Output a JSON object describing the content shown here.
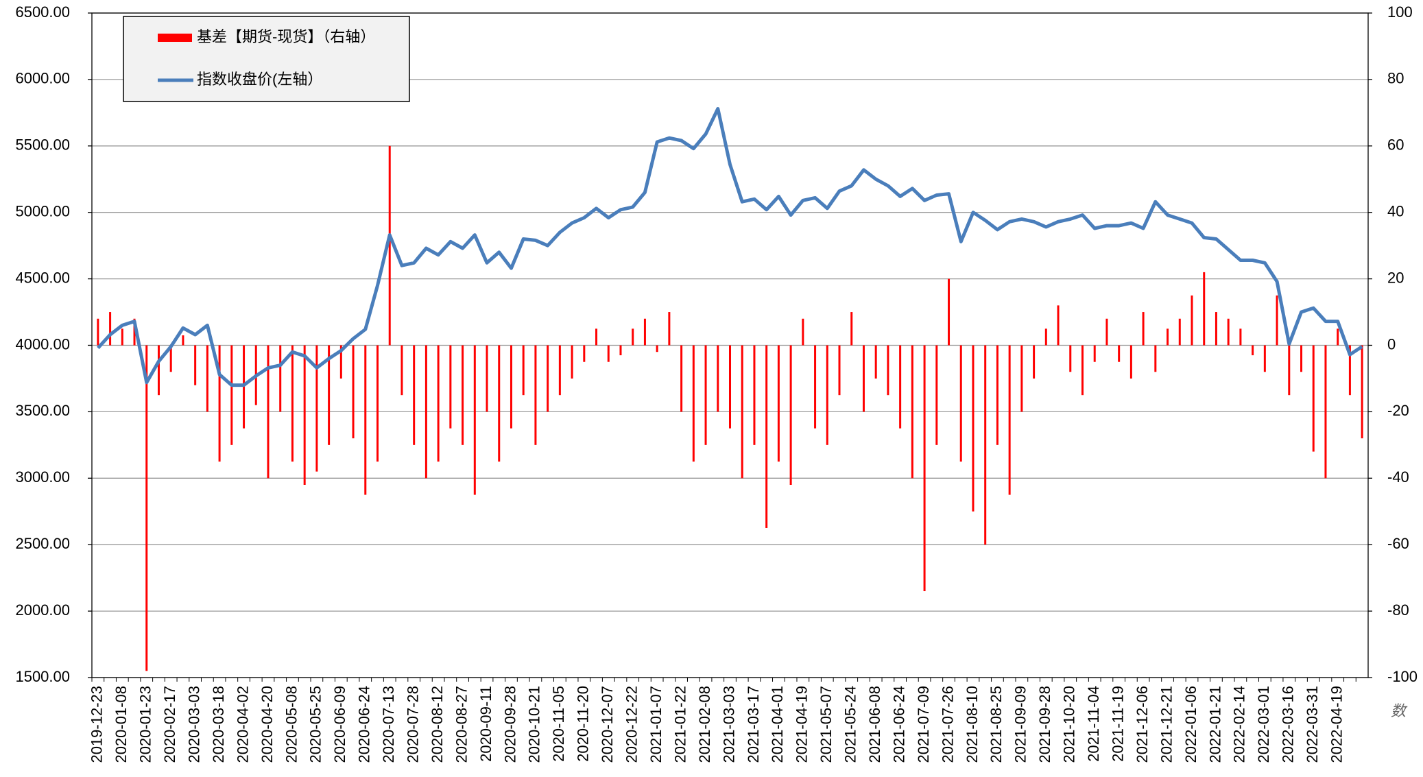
{
  "chart_data": {
    "type": "bar-line",
    "categories": [
      "2019-12-23",
      null,
      "2020-01-08",
      null,
      "2020-01-23",
      null,
      "2020-02-17",
      null,
      "2020-03-03",
      null,
      "2020-03-18",
      null,
      "2020-04-02",
      null,
      "2020-04-20",
      null,
      "2020-05-08",
      null,
      "2020-05-25",
      null,
      "2020-06-09",
      null,
      "2020-06-24",
      null,
      "2020-07-13",
      null,
      "2020-07-28",
      null,
      "2020-08-12",
      null,
      "2020-08-27",
      null,
      "2020-09-11",
      null,
      "2020-09-28",
      null,
      "2020-10-21",
      null,
      "2020-11-05",
      null,
      "2020-11-20",
      null,
      "2020-12-07",
      null,
      "2020-12-22",
      null,
      "2021-01-07",
      null,
      "2021-01-22",
      null,
      "2021-02-08",
      null,
      "2021-03-03",
      null,
      "2021-03-17",
      null,
      "2021-04-01",
      null,
      "2021-04-19",
      null,
      "2021-05-07",
      null,
      "2021-05-24",
      null,
      "2021-06-08",
      null,
      "2021-06-24",
      null,
      "2021-07-09",
      null,
      "2021-07-26",
      null,
      "2021-08-10",
      null,
      "2021-08-25",
      null,
      "2021-09-09",
      null,
      "2021-09-28",
      null,
      "2021-10-20",
      null,
      "2021-11-04",
      null,
      "2021-11-19",
      null,
      "2021-12-06",
      null,
      "2021-12-21",
      null,
      "2022-01-06",
      null,
      "2022-01-21",
      null,
      "2022-02-14",
      null,
      "2022-03-01",
      null,
      "2022-03-16",
      null,
      "2022-03-31",
      null,
      "2022-04-19",
      null,
      null
    ],
    "series": [
      {
        "name": "基差【期货-现货】（右轴）",
        "type": "bar",
        "axis": "y2",
        "color": "#ff0000",
        "values": [
          8,
          10,
          5,
          8,
          -98,
          -15,
          -8,
          3,
          -12,
          -20,
          -35,
          -30,
          -25,
          -18,
          -40,
          -20,
          -35,
          -42,
          -38,
          -30,
          -10,
          -28,
          -45,
          -35,
          60,
          -15,
          -30,
          -40,
          -35,
          -25,
          -30,
          -45,
          -20,
          -35,
          -25,
          -15,
          -30,
          -20,
          -15,
          -10,
          -5,
          5,
          -5,
          -3,
          5,
          8,
          -2,
          10,
          -20,
          -35,
          -30,
          -20,
          -25,
          -40,
          -30,
          -55,
          -35,
          -42,
          8,
          -25,
          -30,
          -15,
          10,
          -20,
          -10,
          -15,
          -25,
          -40,
          -74,
          -30,
          20,
          -35,
          -50,
          -60,
          -30,
          -45,
          -20,
          -10,
          5,
          12,
          -8,
          -15,
          -5,
          8,
          -5,
          -10,
          10,
          -8,
          5,
          8,
          15,
          22,
          10,
          8,
          5,
          -3,
          -8,
          15,
          -15,
          -8,
          -32,
          -40,
          5,
          -15,
          -28
        ]
      },
      {
        "name": "指数收盘价(左轴）",
        "type": "line",
        "color": "#4a7ebb",
        "values": [
          3980,
          4080,
          4150,
          4180,
          3720,
          3880,
          3990,
          4130,
          4080,
          4150,
          3780,
          3700,
          3700,
          3770,
          3830,
          3850,
          3950,
          3920,
          3830,
          3900,
          3960,
          4050,
          4120,
          4450,
          4830,
          4600,
          4620,
          4730,
          4680,
          4780,
          4730,
          4830,
          4620,
          4700,
          4580,
          4800,
          4790,
          4750,
          4850,
          4920,
          4960,
          5030,
          4960,
          5020,
          5040,
          5150,
          5530,
          5560,
          5540,
          5480,
          5590,
          5780,
          5360,
          5080,
          5100,
          5020,
          5120,
          4980,
          5090,
          5110,
          5030,
          5160,
          5200,
          5320,
          5250,
          5200,
          5120,
          5180,
          5090,
          5130,
          5140,
          4780,
          5000,
          4940,
          4870,
          4930,
          4950,
          4930,
          4890,
          4930,
          4950,
          4980,
          4880,
          4900,
          4900,
          4920,
          4880,
          5080,
          4980,
          4950,
          4920,
          4810,
          4800,
          4720,
          4640,
          4640,
          4620,
          4480,
          4010,
          4250,
          4280,
          4180,
          4180,
          3930,
          3990
        ]
      }
    ],
    "ylim": [
      1500,
      6500
    ],
    "yticks": [
      {
        "value": 1500,
        "label": "1500.00"
      },
      {
        "value": 2000,
        "label": "2000.00"
      },
      {
        "value": 2500,
        "label": "2500.00"
      },
      {
        "value": 3000,
        "label": "3000.00"
      },
      {
        "value": 3500,
        "label": "3500.00"
      },
      {
        "value": 4000,
        "label": "4000.00"
      },
      {
        "value": 4500,
        "label": "4500.00"
      },
      {
        "value": 5000,
        "label": "5000.00"
      },
      {
        "value": 5500,
        "label": "5500.00"
      },
      {
        "value": 6000,
        "label": "6000.00"
      },
      {
        "value": 6500,
        "label": "6500.00"
      }
    ],
    "y2lim": [
      -100,
      100
    ],
    "y2ticks": [
      -100,
      -80,
      -60,
      -40,
      -20,
      0,
      20,
      40,
      60,
      80,
      100
    ],
    "grid": true,
    "legend": "top-left",
    "watermark": "数"
  }
}
